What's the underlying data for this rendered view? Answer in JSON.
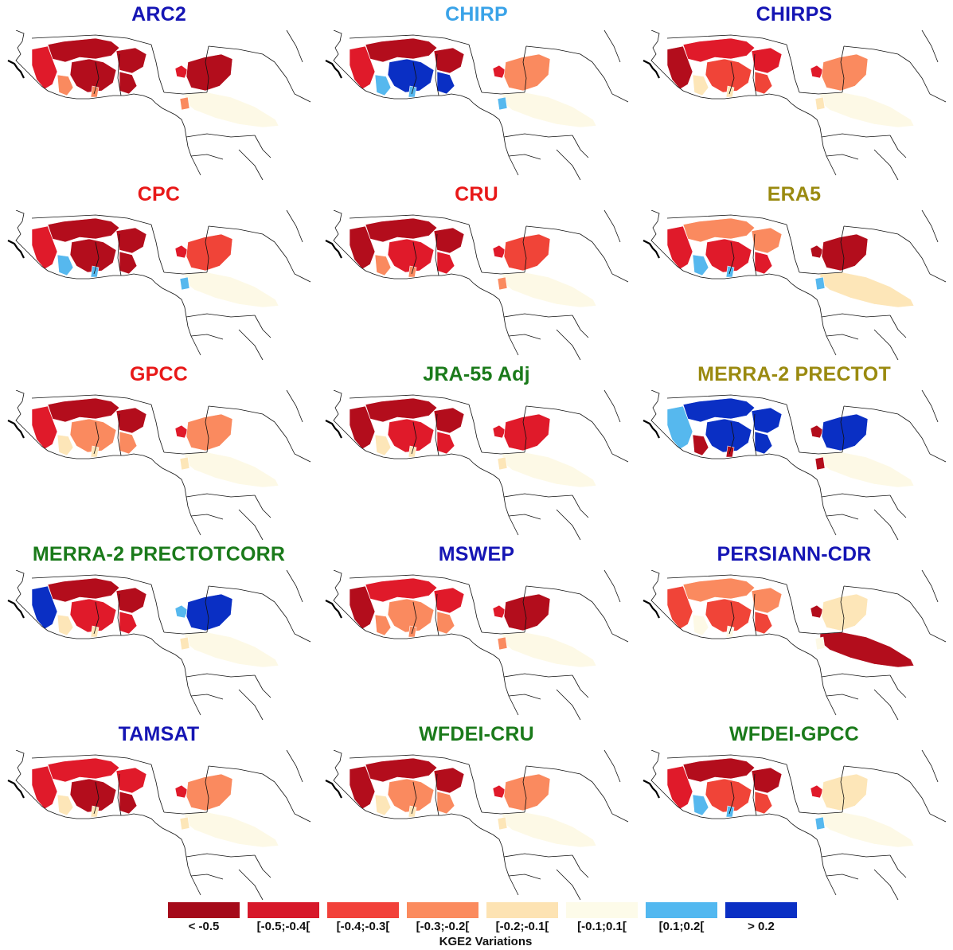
{
  "panels": [
    {
      "title": "ARC2",
      "color": "#1515b4",
      "fill": {
        "north": "#b30d1c",
        "center": "#b30d1c",
        "west": "#e01a2a",
        "east": "#b30d1c",
        "lake": "#e01a2a",
        "south": "#fdf9e6",
        "sw": "#fa8a5f"
      }
    },
    {
      "title": "CHIRP",
      "color": "#3aa3e8",
      "fill": {
        "north": "#b30d1c",
        "center": "#0a2fc4",
        "west": "#e01a2a",
        "east": "#fa8a5f",
        "lake": "#e01a2a",
        "south": "#fdf9e6",
        "sw": "#56b8ee"
      }
    },
    {
      "title": "CHIRPS",
      "color": "#1515b4",
      "fill": {
        "north": "#e01a2a",
        "center": "#f04438",
        "west": "#b30d1c",
        "east": "#fa8a5f",
        "lake": "#e01a2a",
        "south": "#fdf9e6",
        "sw": "#fde6b8"
      }
    },
    {
      "title": "CPC",
      "color": "#e81818",
      "fill": {
        "north": "#b30d1c",
        "center": "#b30d1c",
        "west": "#e01a2a",
        "east": "#f04438",
        "lake": "#e01a2a",
        "south": "#fdf9e6",
        "sw": "#56b8ee"
      }
    },
    {
      "title": "CRU",
      "color": "#e81818",
      "fill": {
        "north": "#b30d1c",
        "center": "#e01a2a",
        "west": "#b30d1c",
        "east": "#f04438",
        "lake": "#e01a2a",
        "south": "#fdf9e6",
        "sw": "#fa8a5f"
      }
    },
    {
      "title": "ERA5",
      "color": "#9a8a10",
      "fill": {
        "north": "#fa8a5f",
        "center": "#e01a2a",
        "west": "#e01a2a",
        "east": "#b30d1c",
        "lake": "#b30d1c",
        "south": "#fde6b8",
        "sw": "#56b8ee"
      }
    },
    {
      "title": "GPCC",
      "color": "#e81818",
      "fill": {
        "north": "#b30d1c",
        "center": "#fa8a5f",
        "west": "#e01a2a",
        "east": "#fa8a5f",
        "lake": "#e01a2a",
        "south": "#fdf9e6",
        "sw": "#fde6b8"
      }
    },
    {
      "title": "JRA-55 Adj",
      "color": "#1a7a1a",
      "fill": {
        "north": "#b30d1c",
        "center": "#e01a2a",
        "west": "#b30d1c",
        "east": "#e01a2a",
        "lake": "#e01a2a",
        "south": "#fdf9e6",
        "sw": "#fde6b8"
      }
    },
    {
      "title": "MERRA-2 PRECTOT",
      "color": "#9a8a10",
      "fill": {
        "north": "#0a2fc4",
        "center": "#0a2fc4",
        "west": "#56b8ee",
        "east": "#0a2fc4",
        "lake": "#b30d1c",
        "south": "#fdf9e6",
        "sw": "#b30d1c"
      }
    },
    {
      "title": "MERRA-2 PRECTOTCORR",
      "color": "#1a7a1a",
      "fill": {
        "north": "#b30d1c",
        "center": "#e01a2a",
        "west": "#0a2fc4",
        "east": "#0a2fc4",
        "lake": "#56b8ee",
        "south": "#fdf9e6",
        "sw": "#fde6b8"
      }
    },
    {
      "title": "MSWEP",
      "color": "#1515b4",
      "fill": {
        "north": "#e01a2a",
        "center": "#fa8a5f",
        "west": "#b30d1c",
        "east": "#b30d1c",
        "lake": "#e01a2a",
        "south": "#fdf9e6",
        "sw": "#fa8a5f"
      }
    },
    {
      "title": "PERSIANN-CDR",
      "color": "#1515b4",
      "fill": {
        "north": "#fa8a5f",
        "center": "#f04438",
        "west": "#f04438",
        "east": "#fde6b8",
        "lake": "#b30d1c",
        "south": "#b30d1c",
        "sw": "#fdf9e6"
      }
    },
    {
      "title": "TAMSAT",
      "color": "#1515b4",
      "fill": {
        "north": "#e01a2a",
        "center": "#b30d1c",
        "west": "#e01a2a",
        "east": "#fa8a5f",
        "lake": "#e01a2a",
        "south": "#fdf9e6",
        "sw": "#fde6b8"
      }
    },
    {
      "title": "WFDEI-CRU",
      "color": "#1a7a1a",
      "fill": {
        "north": "#b30d1c",
        "center": "#fa8a5f",
        "west": "#b30d1c",
        "east": "#fa8a5f",
        "lake": "#e01a2a",
        "south": "#fdf9e6",
        "sw": "#fde6b8"
      }
    },
    {
      "title": "WFDEI-GPCC",
      "color": "#1a7a1a",
      "fill": {
        "north": "#b30d1c",
        "center": "#f04438",
        "west": "#e01a2a",
        "east": "#fde6b8",
        "lake": "#e01a2a",
        "south": "#fdf9e6",
        "sw": "#56b8ee"
      }
    }
  ],
  "legend": {
    "title": "KGE2 Variations",
    "items": [
      {
        "label": "< -0.5",
        "color": "#a50a1a"
      },
      {
        "label": "[-0.5;-0.4[",
        "color": "#d7182a"
      },
      {
        "label": "[-0.4;-0.3[",
        "color": "#f2413a"
      },
      {
        "label": "[-0.3;-0.2[",
        "color": "#fb8b5e"
      },
      {
        "label": "[-0.2;-0.1[",
        "color": "#fde3b3"
      },
      {
        "label": "[-0.1;0.1[",
        "color": "#fdfbe9"
      },
      {
        "label": "[0.1;0.2[",
        "color": "#52b8f0"
      },
      {
        "label": "> 0.2",
        "color": "#0a2fc4"
      }
    ]
  }
}
